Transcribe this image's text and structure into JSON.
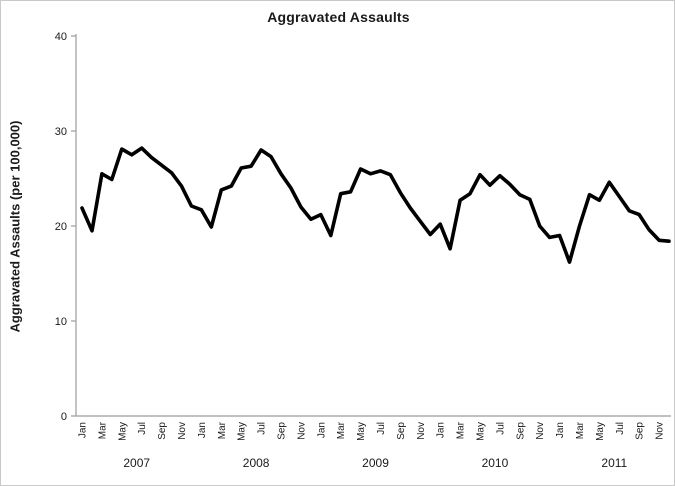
{
  "chart_data": {
    "type": "line",
    "title": "Aggravated Assaults",
    "ylabel": "Aggravated Assaults (per 100,000)",
    "xlabel": "",
    "ylim": [
      0,
      40
    ],
    "yticks": [
      0,
      10,
      20,
      30,
      40
    ],
    "grid": "off",
    "legend_position": "none",
    "x_tick_labels_per_year": [
      "Jan",
      "Mar",
      "May",
      "Jul",
      "Sep",
      "Nov"
    ],
    "years": [
      "2007",
      "2008",
      "2009",
      "2010",
      "2011"
    ],
    "x_start": "Jan 2007",
    "x_frequency": "monthly",
    "line_color": "#000000",
    "axis_color": "#9b9b9b",
    "series": [
      {
        "name": "aggravated-assaults-rate",
        "values": [
          21.9,
          19.5,
          25.5,
          24.9,
          28.1,
          27.5,
          28.2,
          27.2,
          26.4,
          25.6,
          24.2,
          22.1,
          21.7,
          19.9,
          23.8,
          24.2,
          26.1,
          26.3,
          28.0,
          27.3,
          25.5,
          24.0,
          22.0,
          20.7,
          21.2,
          19.0,
          23.4,
          23.6,
          26.0,
          25.5,
          25.8,
          25.4,
          23.5,
          21.9,
          20.5,
          19.1,
          20.2,
          17.6,
          22.7,
          23.4,
          25.4,
          24.3,
          25.3,
          24.4,
          23.3,
          22.8,
          20.0,
          18.8,
          19.0,
          16.2,
          20.0,
          23.3,
          22.7,
          24.6,
          23.1,
          21.6,
          21.2,
          19.6,
          18.5,
          18.4
        ]
      }
    ]
  }
}
